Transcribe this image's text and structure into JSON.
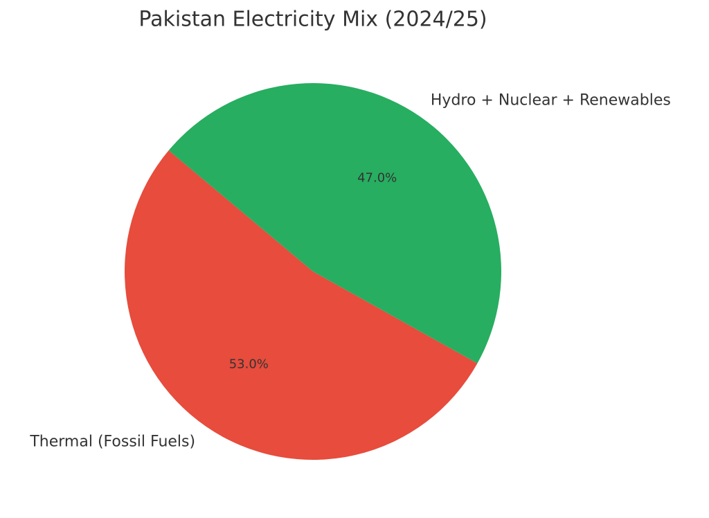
{
  "chart_data": {
    "type": "pie",
    "title": "Pakistan Electricity Mix (2024/25)",
    "categories": [
      "Thermal (Fossil Fuels)",
      "Hydro + Nuclear + Renewables"
    ],
    "values": [
      53.0,
      47.0
    ],
    "value_labels": [
      "53.0%",
      "47.0%"
    ],
    "colors": [
      "#e74c3c",
      "#27ae60"
    ],
    "start_angle": 140
  }
}
